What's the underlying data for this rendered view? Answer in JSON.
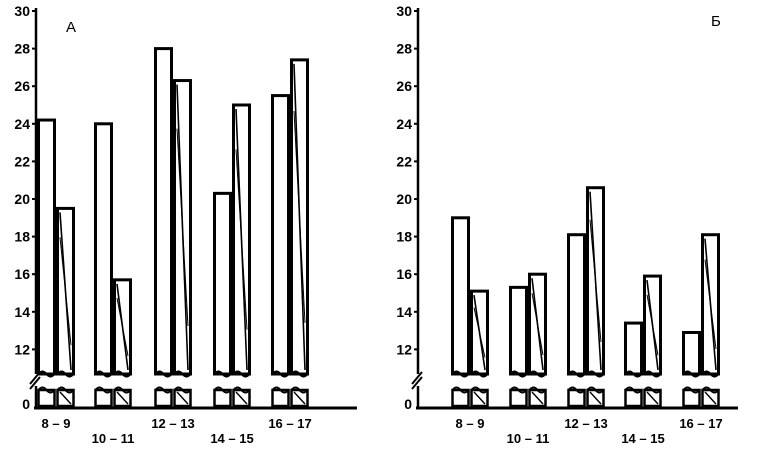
{
  "chart_data": [
    {
      "panel": "А",
      "type": "bar",
      "yticks": [
        "0",
        "12",
        "14",
        "16",
        "18",
        "20",
        "22",
        "24",
        "26",
        "28",
        "30"
      ],
      "ylim": [
        10,
        30
      ],
      "axis_break": true,
      "categories": [
        "8 – 9",
        "10 – 11",
        "12 – 13",
        "14 – 15",
        "16 – 17"
      ],
      "series": [
        {
          "style": "plain",
          "values": [
            24.2,
            24.0,
            28.0,
            20.3,
            25.5
          ]
        },
        {
          "style": "hatched",
          "values": [
            19.5,
            15.7,
            26.3,
            25.0,
            27.4
          ]
        }
      ]
    },
    {
      "panel": "Б",
      "type": "bar",
      "yticks": [
        "0",
        "12",
        "14",
        "16",
        "18",
        "20",
        "22",
        "24",
        "26",
        "28",
        "30"
      ],
      "ylim": [
        10,
        30
      ],
      "axis_break": true,
      "categories": [
        "8 – 9",
        "10 – 11",
        "12 – 13",
        "14 – 15",
        "16 – 17"
      ],
      "series": [
        {
          "style": "plain",
          "values": [
            19.0,
            15.3,
            18.1,
            13.4,
            12.9
          ]
        },
        {
          "style": "hatched",
          "values": [
            15.1,
            16.0,
            20.6,
            15.9,
            18.1
          ]
        }
      ]
    }
  ]
}
